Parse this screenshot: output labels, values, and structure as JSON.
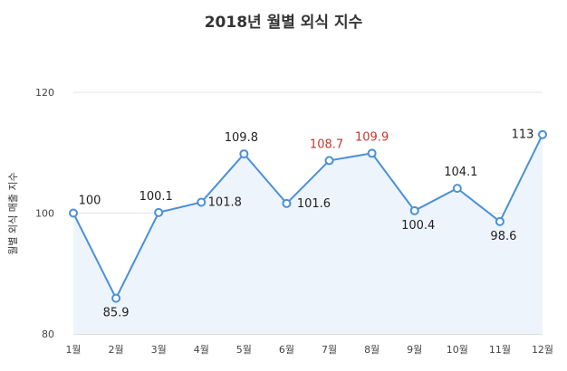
{
  "chart_data": {
    "type": "area",
    "title": "2018년 월별 외식 지수",
    "ylabel": "월별 외식 매출 지수",
    "xlabel": "",
    "categories": [
      "1월",
      "2월",
      "3월",
      "4월",
      "5월",
      "6월",
      "7월",
      "8월",
      "9월",
      "10월",
      "11월",
      "12월"
    ],
    "series": [
      {
        "values": [
          100,
          85.9,
          100.1,
          101.8,
          109.8,
          101.6,
          108.7,
          109.9,
          100.4,
          104.1,
          98.6,
          113
        ]
      }
    ],
    "ylim": [
      80,
      120
    ],
    "yticks": [
      80,
      100,
      120
    ],
    "grid": true,
    "line_color": "#4a90d9",
    "fill_color": "#eef4fc",
    "highlight_color": "#c0392b",
    "highlighted_categories": [
      "7월",
      "8월"
    ]
  }
}
